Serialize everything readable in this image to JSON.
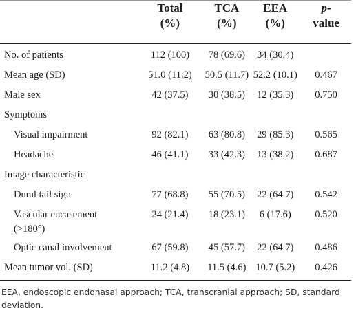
{
  "table": {
    "header": [
      [
        "Total",
        "(%)"
      ],
      [
        "TCA",
        "(%)"
      ],
      [
        "EEA",
        "(%)"
      ],
      [
        "p-",
        "value"
      ]
    ],
    "rows": [
      {
        "label": "No. of patients",
        "cells": [
          "112 (100)",
          "78 (69.6)",
          "34 (30.4)"
        ]
      },
      {
        "label": "Mean age (SD)",
        "cells": [
          "51.0 (11.2)",
          "50.5 (11.7)",
          "52.2 (10.1)",
          "0.467"
        ]
      },
      {
        "label": "Male sex",
        "cells": [
          "42 (37.5)",
          "30 (38.5)",
          "12 (35.3)",
          "0.750"
        ]
      },
      {
        "label": "Symptoms",
        "rows": [
          {
            "label": "Visual impairment",
            "cells": [
              "92 (82.1)",
              "63 (80.8)",
              "29 (85.3)",
              "0.565"
            ]
          },
          {
            "label": "Headache",
            "cells": [
              "46 (41.1)",
              "33 (42.3)",
              "13 (38.2)",
              "0.687"
            ]
          }
        ]
      },
      {
        "label": "Image characteristic",
        "rows": [
          {
            "label": "Dural tail sign",
            "cells": [
              "77 (68.8)",
              "55 (70.5)",
              "22 (64.7)",
              "0.542"
            ]
          },
          {
            "label": "Vascular encasement (>180°)",
            "cells": [
              "24 (21.4)",
              "18 (23.1)",
              "6 (17.6)",
              "0.520"
            ]
          },
          {
            "label": "Optic canal involvement",
            "cells": [
              "67 (59.8)",
              "45 (57.7)",
              "22 (64.7)",
              "0.486"
            ]
          }
        ]
      },
      {
        "label": "Mean tumor vol. (SD)",
        "cells": [
          "11.2 (4.8)",
          "11.5 (4.6)",
          "10.7 (5.2)",
          "0.426"
        ]
      }
    ]
  },
  "footnote": "EEA, endoscopic endonasal approach; TCA, transcranial approach; SD, standard deviation."
}
